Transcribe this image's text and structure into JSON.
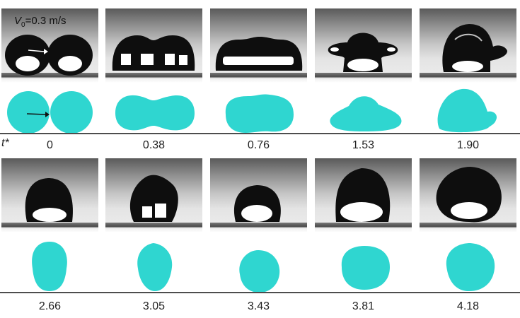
{
  "velocity_label": {
    "symbol": "V",
    "subscript": "0",
    "text": "=0.3 m/s"
  },
  "time_symbol": "t*",
  "row1": {
    "times": [
      "0",
      "0.38",
      "0.76",
      "1.53",
      "1.90"
    ]
  },
  "row2": {
    "times": [
      "2.66",
      "3.05",
      "3.43",
      "3.81",
      "4.18"
    ]
  },
  "colors": {
    "droplet_sim": "#2fd6d0",
    "droplet_photo": "#0d0d0d",
    "baseline": "#4d4d4d"
  }
}
